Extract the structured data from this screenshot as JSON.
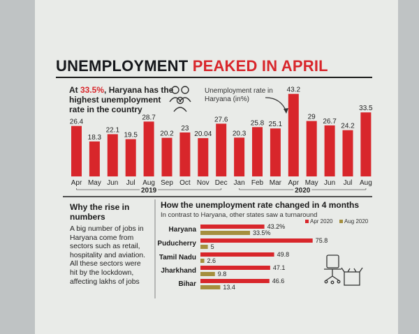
{
  "headline": {
    "part1": "UNEMPLOYMENT ",
    "part2": "PEAKED IN APRIL"
  },
  "highlight": {
    "pre": "At ",
    "value": "33.5%",
    "post": ", Haryana has the highest unemployment rate in the country"
  },
  "chart1_note": "Unemployment rate in Haryana (in%)",
  "why": {
    "heading": "Why the rise in numbers",
    "body": "A big number of jobs in Haryana come from sectors such as retail, hospitality and aviation. All these sectors were hit by the lockdown, affecting lakhs of jobs"
  },
  "how": {
    "heading": "How the unemployment rate changed in 4 months",
    "subtitle": "In contrast to Haryana, other states saw a turnaround"
  },
  "colors": {
    "red": "#d8262b",
    "olive": "#a58f3e"
  },
  "icons": [
    "people-icon",
    "arrow-icon",
    "office-chair-box-icon"
  ],
  "chart_data": [
    {
      "type": "bar",
      "categories": [
        "Apr",
        "May",
        "Jun",
        "Jul",
        "Aug",
        "Sep",
        "Oct",
        "Nov",
        "Dec",
        "Jan",
        "Feb",
        "Mar",
        "Apr",
        "May",
        "Jun",
        "Jul",
        "Aug"
      ],
      "values": [
        26.4,
        18.3,
        22.1,
        19.5,
        28.7,
        20.2,
        23,
        20.04,
        27.6,
        20.3,
        25.8,
        25.1,
        43.2,
        29,
        26.7,
        24.2,
        33.5
      ],
      "value_labels": [
        "26.4",
        "18.3",
        "22.1",
        "19.5",
        "28.7",
        "20.2",
        "23",
        "20.04",
        "27.6",
        "20.3",
        "25.8",
        "25.1",
        "43.2",
        "29",
        "26.7",
        "24.2",
        "33.5"
      ],
      "groups": [
        {
          "label": "2019",
          "from": 0,
          "to": 8
        },
        {
          "label": "2020",
          "from": 9,
          "to": 16
        }
      ],
      "ylim": [
        0,
        45
      ]
    },
    {
      "type": "bar",
      "orientation": "horizontal",
      "categories": [
        "Haryana",
        "Puducherry",
        "Tamil Nadu",
        "Jharkhand",
        "Bihar"
      ],
      "series": [
        {
          "name": "Apr 2020",
          "values": [
            43.2,
            75.8,
            49.8,
            47.1,
            46.6
          ],
          "labels": [
            "43.2%",
            "75.8",
            "49.8",
            "47.1",
            "46.6"
          ]
        },
        {
          "name": "Aug 2020",
          "values": [
            33.5,
            5,
            2.6,
            9.8,
            13.4
          ],
          "labels": [
            "33.5%",
            "5",
            "2.6",
            "9.8",
            "13.4"
          ]
        }
      ],
      "xlim": [
        0,
        80
      ]
    }
  ]
}
